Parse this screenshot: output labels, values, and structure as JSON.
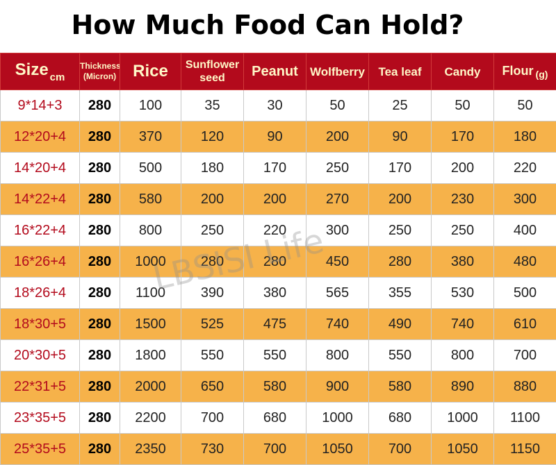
{
  "title": "How Much Food Can Hold?",
  "watermark": "LBSISI Life",
  "colors": {
    "header_bg": "#b30a1c",
    "header_text": "#fff8c8",
    "stripe": "#f6b24a",
    "size_text": "#b30a1c"
  },
  "header": {
    "size": "Size",
    "size_unit": "cm",
    "thickness_line1": "Thickness",
    "thickness_line2": "(Micron)",
    "rice": "Rice",
    "sunflower_line1": "Sunflower",
    "sunflower_line2": "seed",
    "peanut": "Peanut",
    "wolfberry": "Wolfberry",
    "tealeaf": "Tea leaf",
    "candy": "Candy",
    "flour": "Flour",
    "flour_unit": "(g)"
  },
  "rows": [
    {
      "size": "9*14+3",
      "thickness": "280",
      "rice": "100",
      "sunflower": "35",
      "peanut": "30",
      "wolfberry": "50",
      "tealeaf": "25",
      "candy": "50",
      "flour": "50"
    },
    {
      "size": "12*20+4",
      "thickness": "280",
      "rice": "370",
      "sunflower": "120",
      "peanut": "90",
      "wolfberry": "200",
      "tealeaf": "90",
      "candy": "170",
      "flour": "180"
    },
    {
      "size": "14*20+4",
      "thickness": "280",
      "rice": "500",
      "sunflower": "180",
      "peanut": "170",
      "wolfberry": "250",
      "tealeaf": "170",
      "candy": "200",
      "flour": "220"
    },
    {
      "size": "14*22+4",
      "thickness": "280",
      "rice": "580",
      "sunflower": "200",
      "peanut": "200",
      "wolfberry": "270",
      "tealeaf": "200",
      "candy": "230",
      "flour": "300"
    },
    {
      "size": "16*22+4",
      "thickness": "280",
      "rice": "800",
      "sunflower": "250",
      "peanut": "220",
      "wolfberry": "300",
      "tealeaf": "250",
      "candy": "250",
      "flour": "400"
    },
    {
      "size": "16*26+4",
      "thickness": "280",
      "rice": "1000",
      "sunflower": "280",
      "peanut": "280",
      "wolfberry": "450",
      "tealeaf": "280",
      "candy": "380",
      "flour": "480"
    },
    {
      "size": "18*26+4",
      "thickness": "280",
      "rice": "1100",
      "sunflower": "390",
      "peanut": "380",
      "wolfberry": "565",
      "tealeaf": "355",
      "candy": "530",
      "flour": "500"
    },
    {
      "size": "18*30+5",
      "thickness": "280",
      "rice": "1500",
      "sunflower": "525",
      "peanut": "475",
      "wolfberry": "740",
      "tealeaf": "490",
      "candy": "740",
      "flour": "610"
    },
    {
      "size": "20*30+5",
      "thickness": "280",
      "rice": "1800",
      "sunflower": "550",
      "peanut": "550",
      "wolfberry": "800",
      "tealeaf": "550",
      "candy": "800",
      "flour": "700"
    },
    {
      "size": "22*31+5",
      "thickness": "280",
      "rice": "2000",
      "sunflower": "650",
      "peanut": "580",
      "wolfberry": "900",
      "tealeaf": "580",
      "candy": "890",
      "flour": "880"
    },
    {
      "size": "23*35+5",
      "thickness": "280",
      "rice": "2200",
      "sunflower": "700",
      "peanut": "680",
      "wolfberry": "1000",
      "tealeaf": "680",
      "candy": "1000",
      "flour": "1100"
    },
    {
      "size": "25*35+5",
      "thickness": "280",
      "rice": "2350",
      "sunflower": "730",
      "peanut": "700",
      "wolfberry": "1050",
      "tealeaf": "700",
      "candy": "1050",
      "flour": "1150"
    }
  ]
}
